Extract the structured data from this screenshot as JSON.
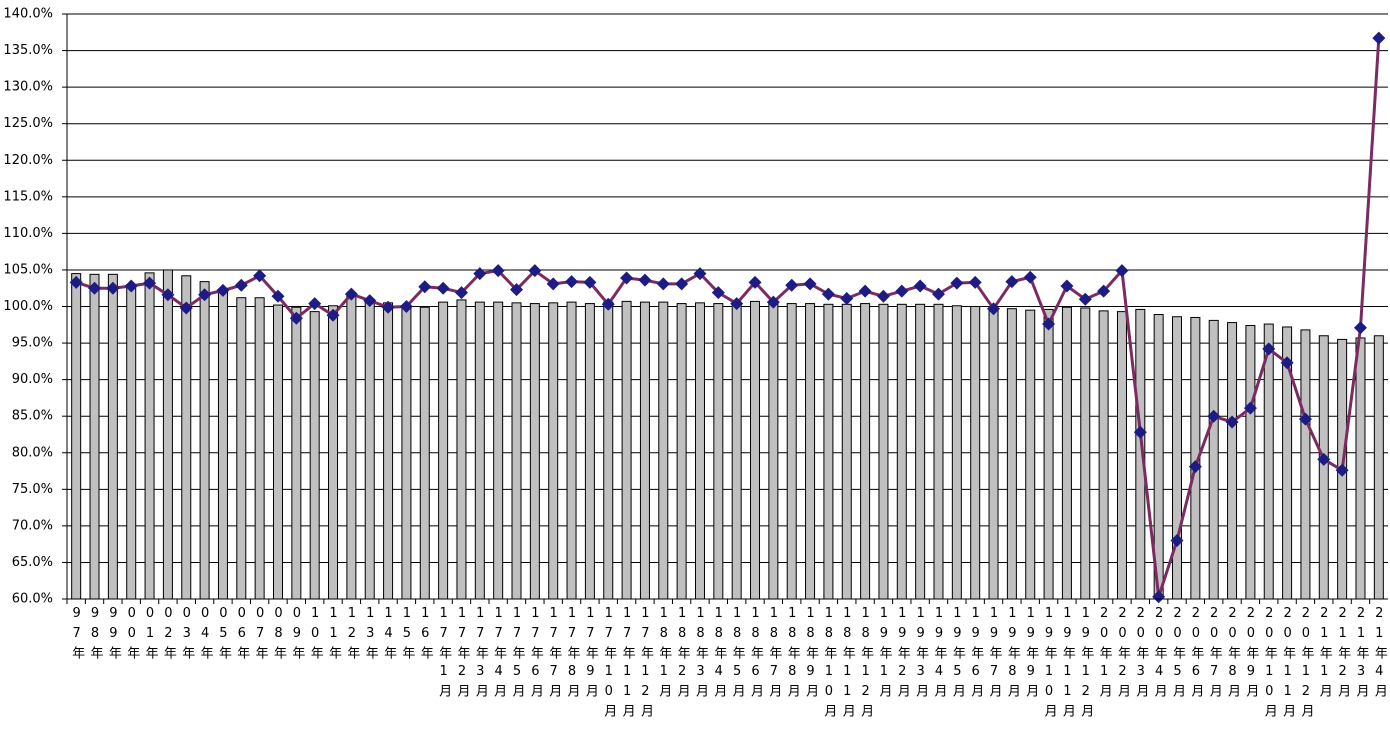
{
  "chart_data": {
    "type": "bar-line",
    "categories": [
      "97年",
      "98年",
      "99年",
      "00年",
      "01年",
      "02年",
      "03年",
      "04年",
      "05年",
      "06年",
      "07年",
      "08年",
      "09年",
      "10年",
      "11年",
      "12年",
      "13年",
      "14年",
      "15年",
      "16年",
      "17年1月",
      "17年2月",
      "17年3月",
      "17年4月",
      "17年5月",
      "17年6月",
      "17年7月",
      "17年8月",
      "17年9月",
      "17年10月",
      "17年11月",
      "17年12月",
      "18年1月",
      "18年2月",
      "18年3月",
      "18年4月",
      "18年5月",
      "18年6月",
      "18年7月",
      "18年8月",
      "18年9月",
      "18年10月",
      "18年11月",
      "18年12月",
      "19年1月",
      "19年2月",
      "19年3月",
      "19年4月",
      "19年5月",
      "19年6月",
      "19年7月",
      "19年8月",
      "19年9月",
      "19年10月",
      "19年11月",
      "19年12月",
      "20年1月",
      "20年2月",
      "20年3月",
      "20年4月",
      "20年5月",
      "20年6月",
      "20年7月",
      "20年8月",
      "20年9月",
      "20年10月",
      "20年11月",
      "20年12月",
      "21年1月",
      "21年2月",
      "21年3月",
      "21年4月"
    ],
    "series": [
      {
        "type": "bar",
        "color": "#c0c0c0",
        "values": [
          104.5,
          104.4,
          104.4,
          103.0,
          104.6,
          105.0,
          104.2,
          103.4,
          102.3,
          101.2,
          101.2,
          100.2,
          99.9,
          99.3,
          100.1,
          101.5,
          101.0,
          100.5,
          100.0,
          99.9,
          100.6,
          100.9,
          100.6,
          100.6,
          100.5,
          100.4,
          100.5,
          100.6,
          100.4,
          100.6,
          100.7,
          100.6,
          100.6,
          100.4,
          100.5,
          100.4,
          100.6,
          100.7,
          100.6,
          100.4,
          100.4,
          100.3,
          100.3,
          100.4,
          100.3,
          100.3,
          100.3,
          100.3,
          100.1,
          100.0,
          100.0,
          99.7,
          99.5,
          99.6,
          99.9,
          99.8,
          99.4,
          99.3,
          99.6,
          98.9,
          98.6,
          98.5,
          98.1,
          97.8,
          97.4,
          97.6,
          97.2,
          96.8,
          96.0,
          95.5,
          95.7,
          96.0
        ]
      },
      {
        "type": "line",
        "color": "#7b2a62",
        "marker_color": "#1c1c84",
        "values": [
          103.3,
          102.5,
          102.5,
          102.8,
          103.2,
          101.6,
          99.8,
          101.6,
          102.2,
          102.9,
          104.2,
          101.4,
          98.4,
          100.4,
          98.8,
          101.7,
          100.8,
          99.9,
          100.0,
          102.7,
          102.5,
          101.9,
          104.5,
          104.9,
          102.3,
          104.9,
          103.1,
          103.4,
          103.3,
          100.3,
          103.9,
          103.6,
          103.1,
          103.1,
          104.5,
          101.9,
          100.4,
          103.3,
          100.6,
          102.9,
          103.1,
          101.7,
          101.1,
          102.1,
          101.4,
          102.1,
          102.8,
          101.7,
          103.2,
          103.3,
          99.7,
          103.4,
          104.0,
          97.6,
          102.8,
          101.0,
          102.1,
          104.9,
          82.8,
          60.3,
          68.0,
          78.1,
          85.0,
          84.2,
          86.1,
          94.2,
          92.3,
          84.6,
          79.1,
          77.6,
          97.1,
          136.7
        ]
      }
    ],
    "ylim": [
      60,
      140
    ],
    "yticks": [
      {
        "value": 60,
        "label": "60.0%"
      },
      {
        "value": 65,
        "label": "65.0%"
      },
      {
        "value": 70,
        "label": "70.0%"
      },
      {
        "value": 75,
        "label": "75.0%"
      },
      {
        "value": 80,
        "label": "80.0%"
      },
      {
        "value": 85,
        "label": "85.0%"
      },
      {
        "value": 90,
        "label": "90.0%"
      },
      {
        "value": 95,
        "label": "95.0%"
      },
      {
        "value": 100,
        "label": "100.0%"
      },
      {
        "value": 105,
        "label": "105.0%"
      },
      {
        "value": 110,
        "label": "110.0%"
      },
      {
        "value": 115,
        "label": "115.0%"
      },
      {
        "value": 120,
        "label": "120.0%"
      },
      {
        "value": 125,
        "label": "125.0%"
      },
      {
        "value": 130,
        "label": "130.0%"
      },
      {
        "value": 135,
        "label": "135.0%"
      },
      {
        "value": 140,
        "label": "140.0%"
      }
    ],
    "grid": true
  }
}
